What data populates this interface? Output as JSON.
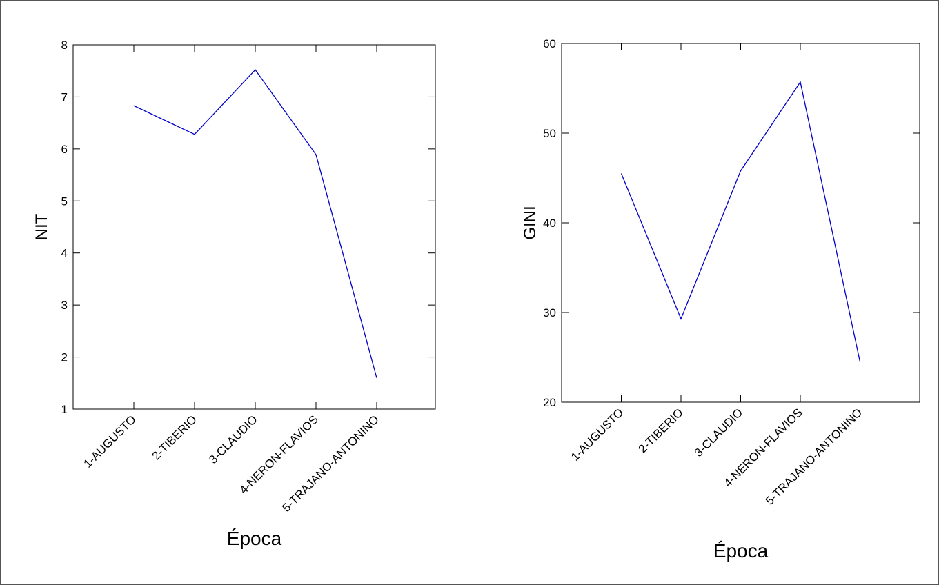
{
  "chart_data": [
    {
      "type": "line",
      "title": "",
      "xlabel": "Época",
      "ylabel": "NIT",
      "categories": [
        "1-AUGUSTO",
        "2-TIBERIO",
        "3-CLAUDIO",
        "4-NERON-FLAVIOS",
        "5-TRAJANO-ANTONINO"
      ],
      "series": [
        {
          "values": [
            6.83,
            6.28,
            7.52,
            5.89,
            1.6
          ]
        }
      ],
      "ylim": [
        1,
        8
      ],
      "yticks": [
        "1",
        "2",
        "3",
        "4",
        "5",
        "6",
        "7",
        "8"
      ],
      "grid": false,
      "line_color": "#0000cc"
    },
    {
      "type": "line",
      "title": "",
      "xlabel": "Época",
      "ylabel": "GINI",
      "categories": [
        "1-AUGUSTO",
        "2-TIBERIO",
        "3-CLAUDIO",
        "4-NERON-FLAVIOS",
        "5-TRAJANO-ANTONINO"
      ],
      "series": [
        {
          "values": [
            45.5,
            29.3,
            45.8,
            55.7,
            24.5
          ]
        }
      ],
      "ylim": [
        20,
        60
      ],
      "yticks": [
        "20",
        "30",
        "40",
        "50",
        "60"
      ],
      "grid": false,
      "line_color": "#0000cc"
    }
  ]
}
